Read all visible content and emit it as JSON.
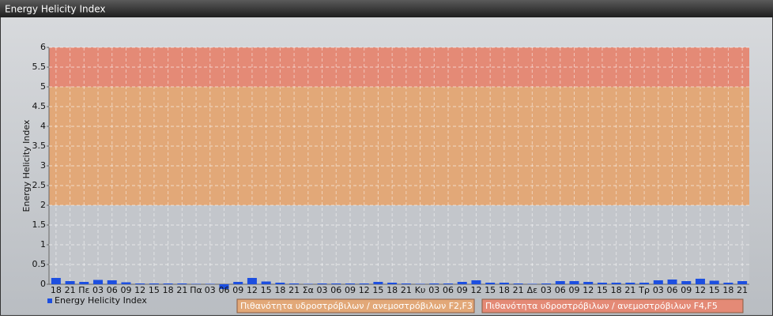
{
  "chart_data": {
    "type": "bar",
    "title": "Energy Helicity Index",
    "ylabel": "Energy Helicity Index",
    "categories": [
      "18",
      "21",
      "Πε",
      "03",
      "06",
      "09",
      "12",
      "15",
      "18",
      "21",
      "Πα",
      "03",
      "06",
      "09",
      "12",
      "15",
      "18",
      "21",
      "Σα",
      "03",
      "06",
      "09",
      "12",
      "15",
      "18",
      "21",
      "Κυ",
      "03",
      "06",
      "09",
      "12",
      "15",
      "18",
      "21",
      "Δε",
      "03",
      "06",
      "09",
      "12",
      "15",
      "18",
      "21",
      "Τρ",
      "03",
      "06",
      "09",
      "12",
      "15",
      "18",
      "21"
    ],
    "series": [
      {
        "name": "Energy Helicity Index",
        "color": "#1d4fe0",
        "values": [
          0.16,
          0.08,
          0.06,
          0.11,
          0.1,
          0.05,
          0.02,
          0.02,
          0.02,
          0.02,
          0.01,
          0.01,
          -0.12,
          0.06,
          0.16,
          0.07,
          0.04,
          0.02,
          0.01,
          0.02,
          0.02,
          0.02,
          0.02,
          0.06,
          0.04,
          0.02,
          0.01,
          0.02,
          0.02,
          0.06,
          0.1,
          0.04,
          0.04,
          0.02,
          0.01,
          0.02,
          0.08,
          0.08,
          0.06,
          0.04,
          0.04,
          0.04,
          0.04,
          0.1,
          0.12,
          0.08,
          0.14,
          0.09,
          0.04,
          0.08
        ]
      }
    ],
    "bands": [
      {
        "from": 0,
        "to": 2,
        "color": "#c3c6cb"
      },
      {
        "from": 2,
        "to": 5,
        "color": "#e2a878",
        "name": "Πιθανότητα υδροστρόβιλων / ανεμοστρόβιλων F2,F3"
      },
      {
        "from": 5,
        "to": 6,
        "color": "#e48a76",
        "name": "Πιθανότητα υδροστρόβιλων / ανεμοστρόβιλων F4,F5"
      }
    ],
    "ylim": [
      0,
      6
    ],
    "yticks": [
      0,
      0.5,
      1,
      1.5,
      2,
      2.5,
      3,
      3.5,
      4,
      4.5,
      5,
      5.5,
      6
    ],
    "grid": true
  }
}
